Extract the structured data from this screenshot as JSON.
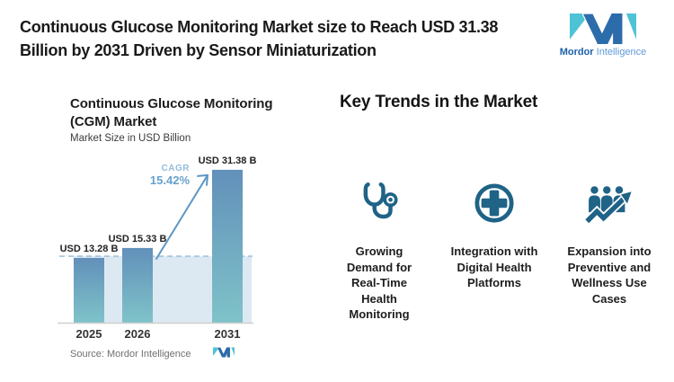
{
  "header": {
    "title_lines": [
      "Continuous Glucose Monitoring Market size to Reach USD 31.38",
      "Billion by 2031 Driven by Sensor Miniaturization"
    ]
  },
  "brand": {
    "name_bold": "Mordor",
    "name_light": "Intelligence",
    "teal": "#4ec3d5",
    "blue": "#2d6cab"
  },
  "chart_data": {
    "type": "bar",
    "title": "Continuous Glucose Monitoring (CGM) Market",
    "title_lines": [
      "Continuous Glucose Monitoring",
      "(CGM) Market"
    ],
    "subtitle": "Market Size in USD Billion",
    "categories": [
      "2025",
      "2026",
      "2031"
    ],
    "values": [
      13.28,
      15.33,
      31.38
    ],
    "value_labels": [
      "USD 13.28 B",
      "USD 15.33 B",
      "USD 31.38 B"
    ],
    "ylabel": "Market Size in USD Billion",
    "ylim": [
      0,
      34
    ],
    "grid": false,
    "legend": "none",
    "annotations": {
      "cagr_label": "CAGR",
      "cagr_value": "15.42%",
      "reference_line": "dashed horizontal line at 2025 value (13.28), shaded band below it"
    },
    "source": "Source: Mordor Intelligence",
    "colors": {
      "bar_gradient_top": "#6290ba",
      "bar_gradient_bottom": "#7fc3c9",
      "shade_band": "#dde9f2",
      "dashed_line": "#a3c4d9",
      "arrow": "#5d97c5"
    }
  },
  "trends": {
    "heading": "Key Trends in the Market",
    "icon_color": "#1f6387",
    "items": [
      {
        "icon": "stethoscope-icon",
        "label": "Growing Demand for Real-Time Health Monitoring",
        "label_lines": [
          "Growing",
          "Demand for",
          "Real-Time",
          "Health",
          "Monitoring"
        ]
      },
      {
        "icon": "medical-plus-circle-icon",
        "label": "Integration with Digital Health Platforms",
        "label_lines": [
          "Integration with",
          "Digital Health",
          "Platforms"
        ]
      },
      {
        "icon": "people-growth-arrow-icon",
        "label": "Expansion into Preventive and Wellness Use Cases",
        "label_lines": [
          "Expansion into",
          "Preventive and",
          "Wellness Use",
          "Cases"
        ]
      }
    ]
  }
}
